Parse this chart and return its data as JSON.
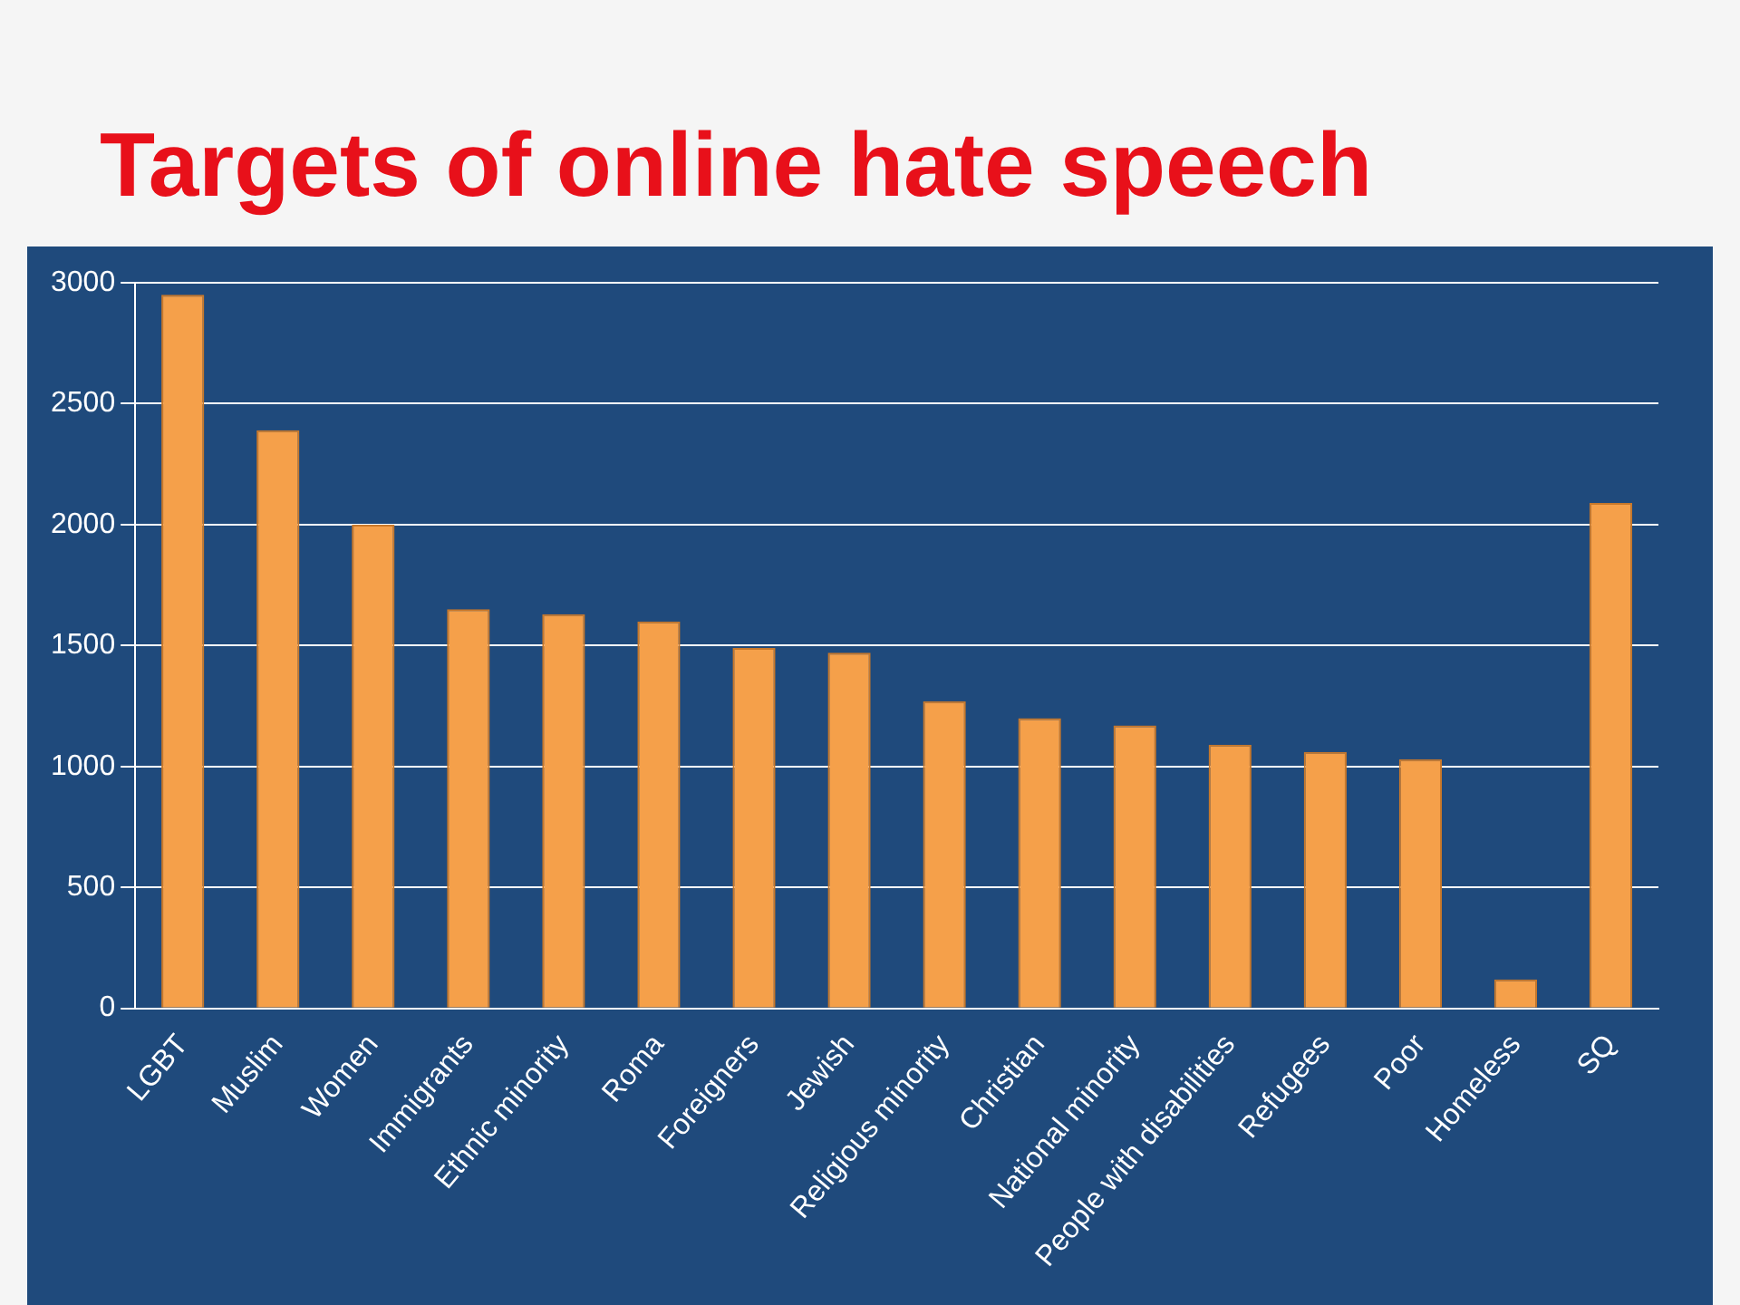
{
  "chart_data": {
    "type": "bar",
    "title": "Targets of online hate speech",
    "categories": [
      "LGBT",
      "Muslim",
      "Women",
      "Immigrants",
      "Ethnic minority",
      "Roma",
      "Foreigners",
      "Jewish",
      "Religious minority",
      "Christian",
      "National minority",
      "People with disabilities",
      "Refugees",
      "Poor",
      "Homeless",
      "SQ"
    ],
    "values": [
      2950,
      2390,
      2000,
      1650,
      1630,
      1600,
      1490,
      1470,
      1270,
      1200,
      1170,
      1090,
      1060,
      1030,
      120,
      2090
    ],
    "color": "#f5a04a",
    "ylim": [
      0,
      3000
    ],
    "yticks": [
      0,
      500,
      1000,
      1500,
      2000,
      2500,
      3000
    ],
    "grid": "y"
  }
}
